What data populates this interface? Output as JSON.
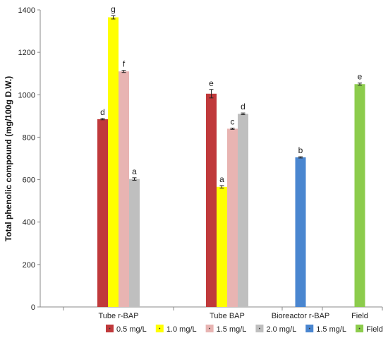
{
  "chart_data": {
    "type": "bar",
    "ylabel": "Total phenolic compound (mg/100g D.W.)",
    "ylim": [
      0,
      1400
    ],
    "yticks": [
      0,
      200,
      400,
      600,
      800,
      1000,
      1200,
      1400
    ],
    "grid": false,
    "legend_position": "bottom",
    "groups": [
      {
        "label": "Tube r-BAP",
        "bars": [
          {
            "series": "0.5 mg/L",
            "value": 885,
            "error": 3,
            "letter": "d"
          },
          {
            "series": "1.0 mg/L",
            "value": 1365,
            "error": 8,
            "letter": "g"
          },
          {
            "series": "1.5 mg/L",
            "value": 1110,
            "error": 5,
            "letter": "f"
          },
          {
            "series": "2.0 mg/L",
            "value": 603,
            "error": 6,
            "letter": "a"
          }
        ]
      },
      {
        "label": "Tube BAP",
        "bars": [
          {
            "series": "0.5 mg/L",
            "value": 1005,
            "error": 20,
            "letter": "e"
          },
          {
            "series": "1.0 mg/L",
            "value": 566,
            "error": 6,
            "letter": "a"
          },
          {
            "series": "1.5 mg/L",
            "value": 840,
            "error": 3,
            "letter": "c"
          },
          {
            "series": "2.0 mg/L",
            "value": 910,
            "error": 4,
            "letter": "d"
          }
        ]
      },
      {
        "label": "Bioreactor r-BAP",
        "bars": [
          {
            "series": "1.5 mg/L (bioreactor)",
            "value": 705,
            "error": 3,
            "letter": "b"
          }
        ]
      },
      {
        "label": "Field",
        "bars": [
          {
            "series": "Field",
            "value": 1050,
            "error": 5,
            "letter": "e"
          }
        ]
      }
    ],
    "legend": [
      {
        "label": "0.5 mg/L",
        "color": "#c0393b"
      },
      {
        "label": "1.0 mg/L",
        "color": "#ffff00"
      },
      {
        "label": "1.5 mg/L",
        "color": "#e8b4b2"
      },
      {
        "label": "2.0 mg/L",
        "color": "#bfbfbf"
      },
      {
        "label": "1.5 mg/L",
        "color": "#4a86d0"
      },
      {
        "label": "Field",
        "color": "#8ccc4c"
      }
    ],
    "series_colors": {
      "0.5 mg/L": "#c0393b",
      "1.0 mg/L": "#ffff00",
      "1.5 mg/L": "#e8b4b2",
      "2.0 mg/L": "#bfbfbf",
      "1.5 mg/L (bioreactor)": "#4a86d0",
      "Field": "#8ccc4c"
    }
  }
}
